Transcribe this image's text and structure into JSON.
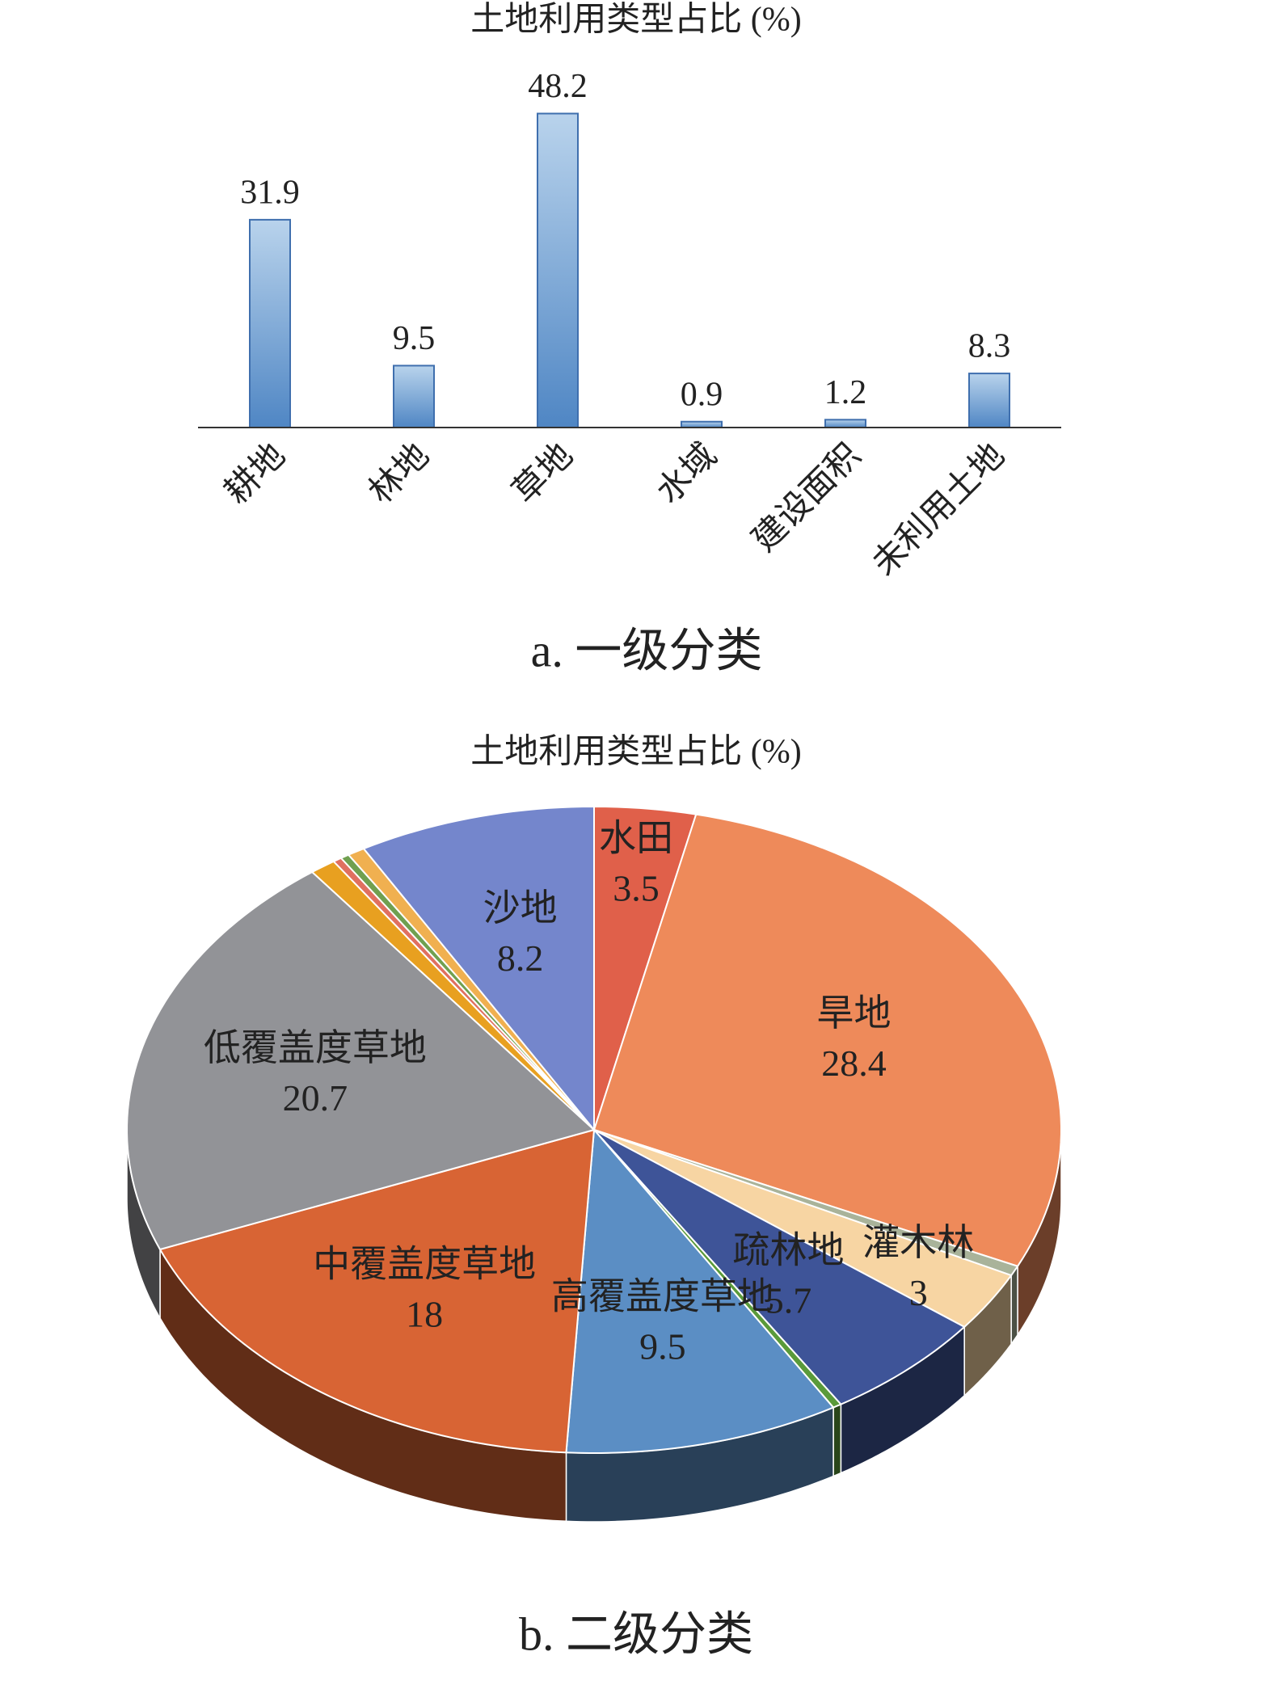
{
  "chart_data": [
    {
      "type": "bar",
      "title": "土地利用类型占比 (%)",
      "caption": "a. 一级分类",
      "categories": [
        "耕地",
        "林地",
        "草地",
        "水域",
        "建设面积",
        "未利用土地"
      ],
      "values": [
        31.9,
        9.5,
        48.2,
        0.9,
        1.2,
        8.3
      ],
      "color": "#5b8ec4",
      "ylim": [
        0,
        50
      ]
    },
    {
      "type": "pie",
      "title": "土地利用类型占比 (%)",
      "caption": "b. 二级分类",
      "categories": [
        "水田",
        "旱地",
        null,
        "灌木林",
        "疏林地",
        null,
        "高覆盖度草地",
        "中覆盖度草地",
        "低覆盖度草地",
        null,
        null,
        null,
        null,
        "沙地"
      ],
      "values": [
        3.5,
        28.4,
        0.5,
        3,
        5.7,
        0.3,
        9.5,
        18,
        20.7,
        0.9,
        0.3,
        0.3,
        0.6,
        8.2
      ],
      "colors": [
        "#e0604a",
        "#ee8a5a",
        "#a9b39a",
        "#f7d5a3",
        "#3e5498",
        "#5a9a3a",
        "#5b8ec4",
        "#d86434",
        "#929397",
        "#e8a020",
        "#e07060",
        "#70a050",
        "#f0b050",
        "#7486cc"
      ]
    }
  ]
}
